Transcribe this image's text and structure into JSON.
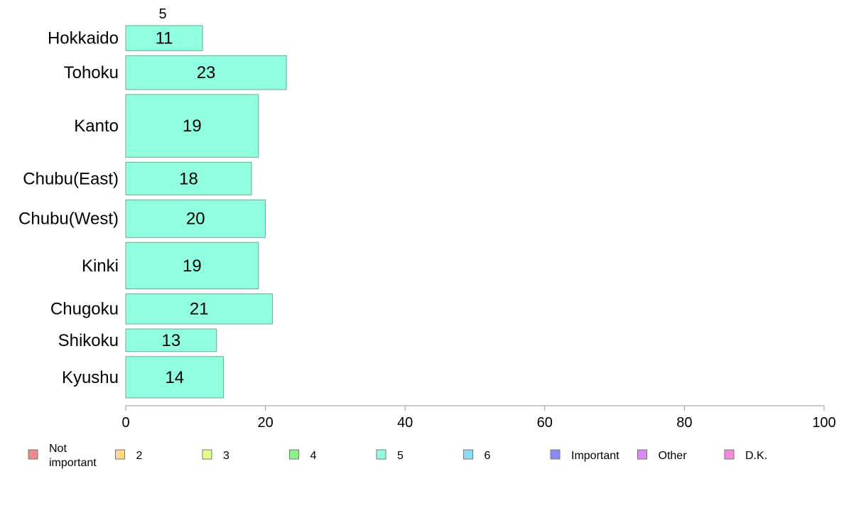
{
  "chart_data": {
    "type": "bar",
    "orientation": "horizontal",
    "top_label": "5",
    "categories": [
      "Hokkaido",
      "Tohoku",
      "Kanto",
      "Chubu(East)",
      "Chubu(West)",
      "Kinki",
      "Chugoku",
      "Shikoku",
      "Kyushu"
    ],
    "series": [
      {
        "name": "5",
        "color": "#8fffe0",
        "values": [
          11,
          23,
          19,
          18,
          20,
          19,
          21,
          13,
          14
        ]
      }
    ],
    "bar_weights": [
      1,
      1.35,
      2.5,
      1.3,
      1.5,
      1.85,
      1.2,
      0.9,
      1.65
    ],
    "xlim": [
      0,
      100
    ],
    "xticks": [
      "0",
      "20",
      "40",
      "60",
      "80",
      "100"
    ],
    "xtick_values": [
      0,
      20,
      40,
      60,
      80,
      100
    ],
    "title": "",
    "xlabel": "",
    "ylabel": "",
    "grid": false,
    "legend_position": "bottom",
    "legend": [
      {
        "label": "Not important",
        "lines": [
          "Not",
          "important"
        ],
        "color": "#f08a8a"
      },
      {
        "label": "2",
        "lines": [
          "2"
        ],
        "color": "#ffd98a"
      },
      {
        "label": "3",
        "lines": [
          "3"
        ],
        "color": "#e0ff8a"
      },
      {
        "label": "4",
        "lines": [
          "4"
        ],
        "color": "#8af08a"
      },
      {
        "label": "5",
        "lines": [
          "5"
        ],
        "color": "#8fffe0"
      },
      {
        "label": "6",
        "lines": [
          "6"
        ],
        "color": "#8adcf5"
      },
      {
        "label": "Important",
        "lines": [
          "Important"
        ],
        "color": "#8a8af5"
      },
      {
        "label": "Other",
        "lines": [
          "Other"
        ],
        "color": "#d98af5"
      },
      {
        "label": "D.K.",
        "lines": [
          "D.K."
        ],
        "color": "#f58ad9"
      }
    ]
  }
}
